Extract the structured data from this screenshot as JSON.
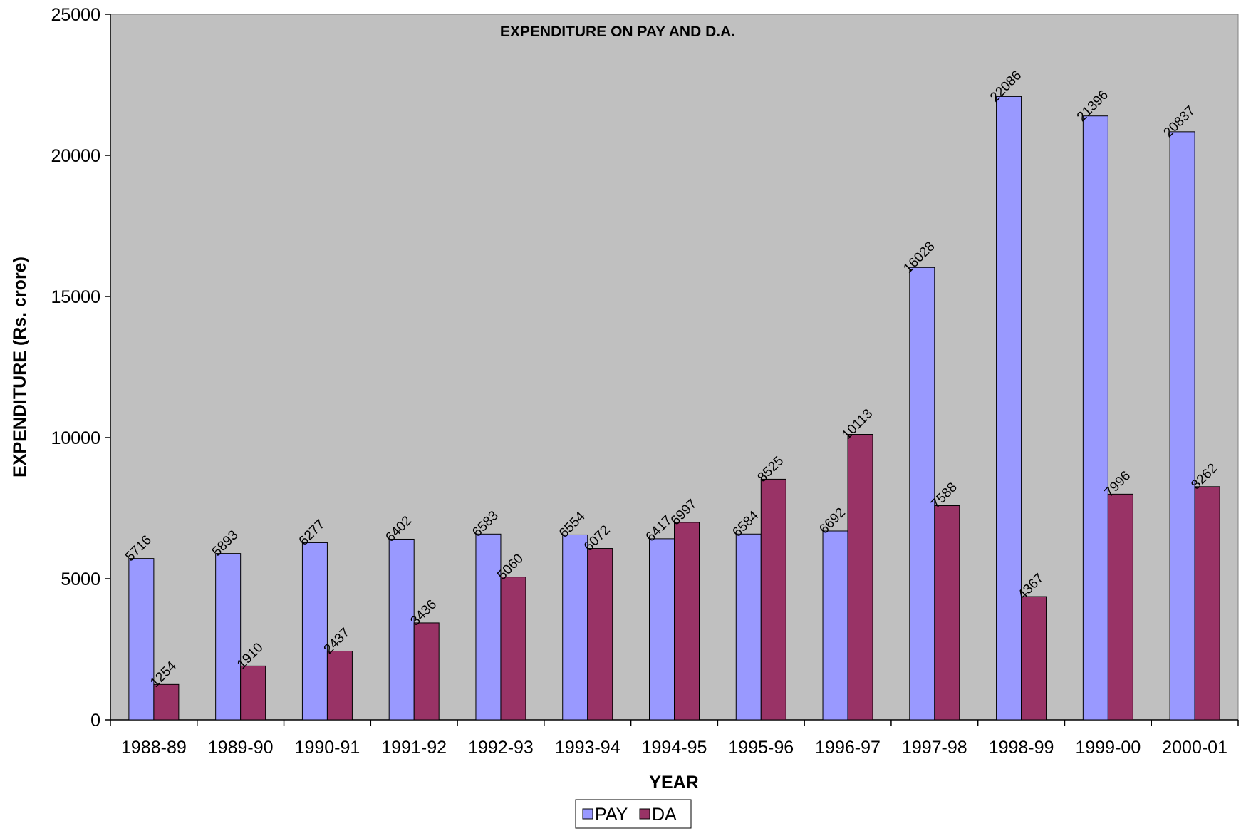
{
  "chart_data": {
    "type": "bar",
    "title": "EXPENDITURE ON PAY AND D.A.",
    "xlabel": "YEAR",
    "ylabel": "EXPENDITURE (Rs. crore)",
    "ylim": [
      0,
      25000
    ],
    "yticks": [
      0,
      5000,
      10000,
      15000,
      20000,
      25000
    ],
    "grid": false,
    "legend_position": "bottom",
    "plot_background": "#c0c0c0",
    "categories": [
      "1988-89",
      "1989-90",
      "1990-91",
      "1991-92",
      "1992-93",
      "1993-94",
      "1994-95",
      "1995-96",
      "1996-97",
      "1997-98",
      "1998-99",
      "1999-00",
      "2000-01"
    ],
    "series": [
      {
        "name": "PAY",
        "color": "#9999ff",
        "values": [
          5716,
          5893,
          6277,
          6402,
          6583,
          6554,
          6417,
          6584,
          6692,
          16028,
          22086,
          21396,
          20837
        ]
      },
      {
        "name": "DA",
        "color": "#993366",
        "values": [
          1254,
          1910,
          2437,
          3436,
          5060,
          6072,
          6997,
          8525,
          10113,
          7588,
          4367,
          7996,
          8262
        ]
      }
    ]
  }
}
